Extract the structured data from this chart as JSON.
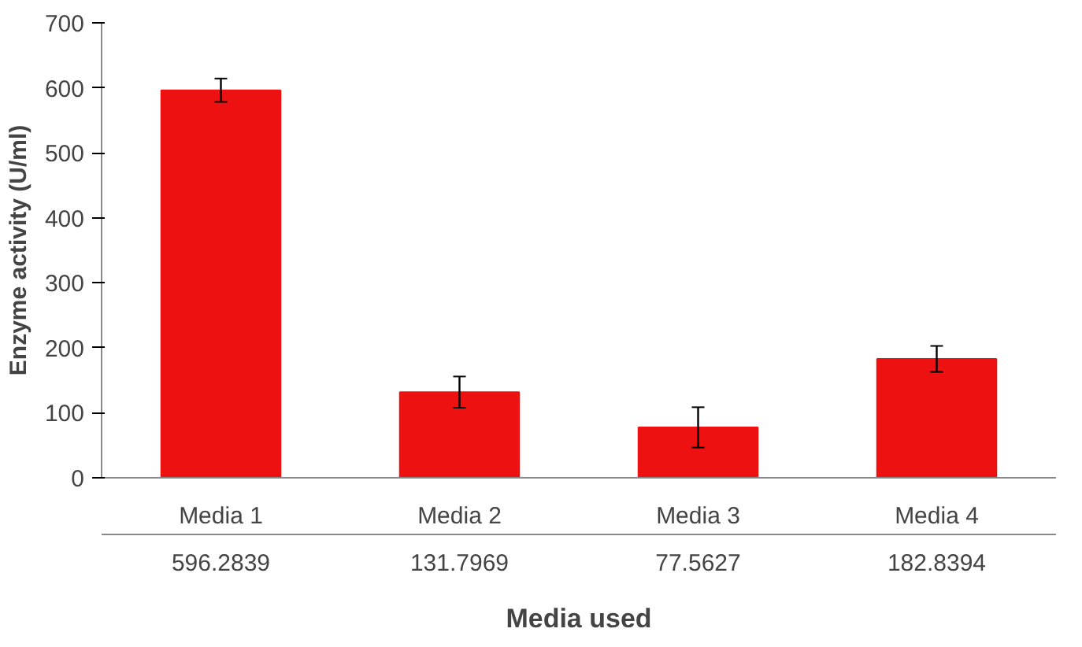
{
  "chart_data": {
    "type": "bar",
    "xlabel": "Media used",
    "ylabel": "Enzyme activity (U/ml)",
    "categories": [
      "Media 1",
      "Media 2",
      "Media 3",
      "Media 4"
    ],
    "values": [
      596.2839,
      131.7969,
      77.5627,
      182.8394
    ],
    "errors": [
      18,
      24,
      31,
      20
    ],
    "color": "#ee1111",
    "ylim": [
      0,
      700
    ],
    "yticks": [
      0,
      100,
      200,
      300,
      400,
      500,
      600,
      700
    ],
    "grid": false,
    "data_labels": true
  }
}
